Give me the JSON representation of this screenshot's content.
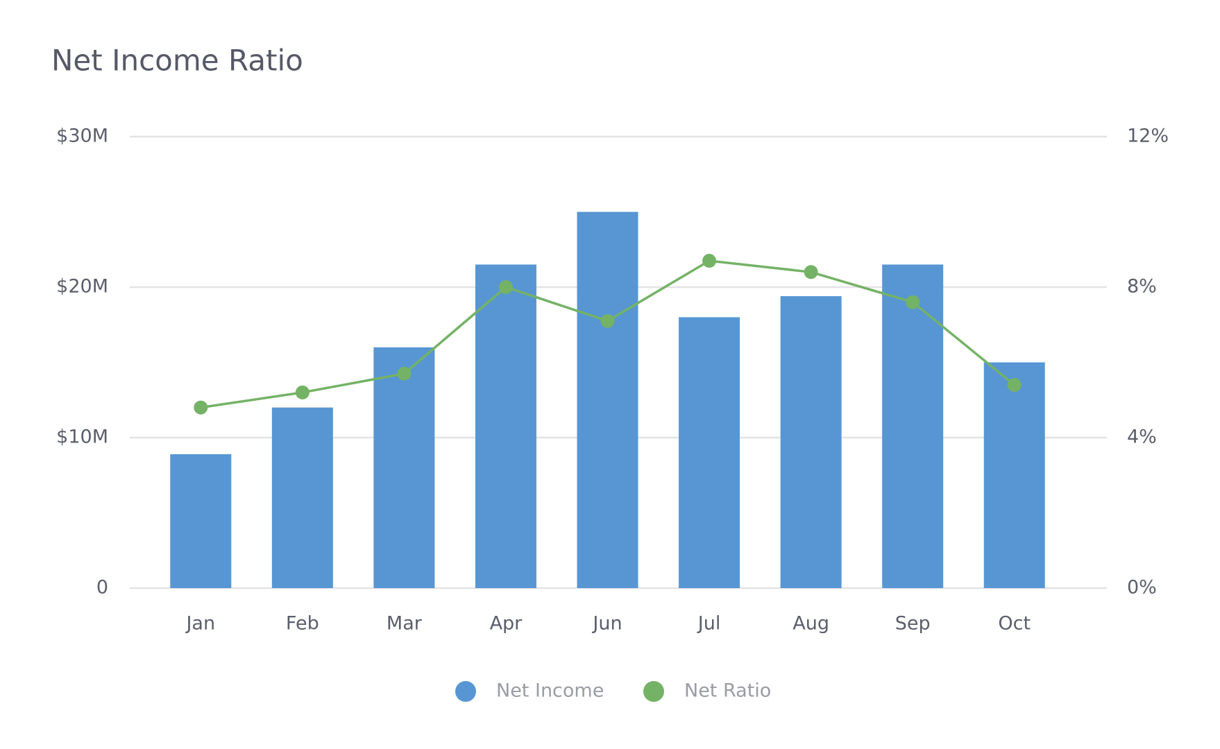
{
  "chart_data": {
    "type": "bar_line",
    "title": "Net Income Ratio",
    "categories": [
      "Jan",
      "Feb",
      "Mar",
      "Apr",
      "Jun",
      "Jul",
      "Aug",
      "Sep",
      "Oct"
    ],
    "series": [
      {
        "name": "Net Income",
        "type": "bar",
        "color": "#5796d3",
        "values": [
          8.9,
          12,
          16,
          21.5,
          25,
          18,
          19.4,
          21.5,
          15
        ]
      },
      {
        "name": "Net Ratio",
        "type": "line",
        "axis": "y2",
        "color": "#74b266",
        "values": [
          4.8,
          5.2,
          5.7,
          8.0,
          7.1,
          8.7,
          8.4,
          7.6,
          5.4
        ]
      }
    ],
    "ylim": [
      0,
      30
    ],
    "yticks": [
      0,
      {
        "value": 10,
        "label": "$10M"
      },
      {
        "value": 20,
        "label": "$20M"
      },
      {
        "value": 30,
        "label": "$30M"
      }
    ],
    "y2lim": [
      0,
      12
    ],
    "y2ticks": [
      {
        "value": 0,
        "label": "0%"
      },
      {
        "value": 4,
        "label": "4%"
      },
      {
        "value": 8,
        "label": "8%"
      },
      {
        "value": 12,
        "label": "12%"
      }
    ],
    "grid": true,
    "legend": "bottom"
  }
}
